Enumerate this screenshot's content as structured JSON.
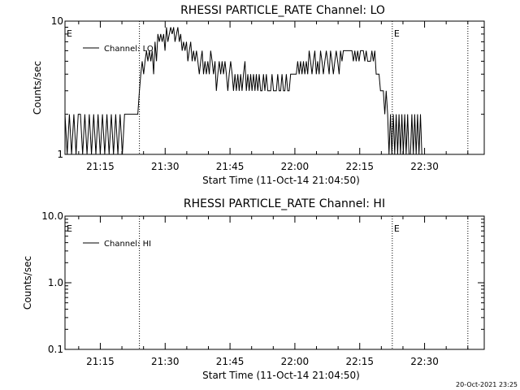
{
  "footer": {
    "timestamp": "20-Oct-2021 23:25"
  },
  "colors": {
    "background": "#ffffff",
    "foreground": "#000000"
  },
  "chart_data": [
    {
      "type": "line",
      "title": "RHESSI PARTICLE_RATE Channel: LO",
      "xlabel": "Start Time (11-Oct-14 21:04:50)",
      "ylabel": "Counts/sec",
      "yscale": "log",
      "xlim": [
        21.1139,
        22.73
      ],
      "ylim": [
        1,
        10
      ],
      "xticks": [
        21.25,
        21.5,
        21.75,
        22.0,
        22.25,
        22.5
      ],
      "xtick_labels": [
        "21:15",
        "21:30",
        "21:45",
        "22:00",
        "22:15",
        "22:30"
      ],
      "yticks": [
        1,
        10
      ],
      "ytick_labels": [
        "1",
        "10"
      ],
      "vlines": [
        21.4008,
        22.3755,
        22.6668
      ],
      "flag_labels": [
        {
          "x": 21.1139,
          "text": "E"
        },
        {
          "x": 22.3755,
          "text": "E"
        }
      ],
      "legend": {
        "position": "top-left",
        "label": "Channel: LO"
      },
      "series": [
        {
          "name": "Channel: LO",
          "x": [
            21.1139,
            21.1224,
            21.1309,
            21.1394,
            21.1479,
            21.1564,
            21.1649,
            21.1734,
            21.1819,
            21.1904,
            21.1989,
            21.2074,
            21.2159,
            21.2244,
            21.2329,
            21.2414,
            21.2499,
            21.2584,
            21.2669,
            21.2754,
            21.2839,
            21.2924,
            21.3009,
            21.3094,
            21.3179,
            21.3264,
            21.3349,
            21.3434,
            21.3519,
            21.3604,
            21.3689,
            21.3774,
            21.3859,
            21.3944,
            21.4008,
            21.406,
            21.4115,
            21.417,
            21.4225,
            21.428,
            21.4335,
            21.439,
            21.4445,
            21.45,
            21.4555,
            21.461,
            21.4665,
            21.472,
            21.4775,
            21.483,
            21.4885,
            21.494,
            21.4995,
            21.505,
            21.5105,
            21.516,
            21.5215,
            21.527,
            21.5325,
            21.538,
            21.5435,
            21.549,
            21.5545,
            21.56,
            21.5655,
            21.571,
            21.5765,
            21.582,
            21.5875,
            21.593,
            21.5985,
            21.604,
            21.6095,
            21.615,
            21.6205,
            21.626,
            21.6315,
            21.637,
            21.6425,
            21.648,
            21.6535,
            21.659,
            21.6645,
            21.67,
            21.6755,
            21.681,
            21.6865,
            21.692,
            21.6975,
            21.703,
            21.7085,
            21.714,
            21.7195,
            21.725,
            21.7305,
            21.736,
            21.7415,
            21.747,
            21.7525,
            21.758,
            21.7635,
            21.769,
            21.7745,
            21.78,
            21.7855,
            21.791,
            21.7965,
            21.802,
            21.8075,
            21.813,
            21.8185,
            21.824,
            21.8295,
            21.835,
            21.8405,
            21.846,
            21.8515,
            21.857,
            21.8625,
            21.868,
            21.8735,
            21.879,
            21.8845,
            21.89,
            21.8955,
            21.901,
            21.9065,
            21.912,
            21.9175,
            21.923,
            21.9285,
            21.934,
            21.9395,
            21.945,
            21.9505,
            21.956,
            21.9615,
            21.967,
            21.9725,
            21.978,
            21.9835,
            21.989,
            21.9945,
            22.0,
            22.0055,
            22.011,
            22.0165,
            22.022,
            22.0275,
            22.033,
            22.0385,
            22.044,
            22.0495,
            22.055,
            22.0605,
            22.066,
            22.0715,
            22.077,
            22.0825,
            22.088,
            22.0935,
            22.099,
            22.1045,
            22.11,
            22.1155,
            22.121,
            22.1265,
            22.132,
            22.1375,
            22.143,
            22.1485,
            22.154,
            22.1595,
            22.165,
            22.1705,
            22.176,
            22.1815,
            22.187,
            22.1925,
            22.198,
            22.2035,
            22.209,
            22.2145,
            22.22,
            22.2255,
            22.231,
            22.2365,
            22.242,
            22.2475,
            22.253,
            22.2585,
            22.264,
            22.2695,
            22.275,
            22.2805,
            22.286,
            22.2915,
            22.297,
            22.3025,
            22.308,
            22.3135,
            22.319,
            22.3245,
            22.33,
            22.3355,
            22.341,
            22.3465,
            22.352,
            22.3575,
            22.363,
            22.3685,
            22.374,
            22.3795,
            22.385,
            22.3905,
            22.396,
            22.4015,
            22.407,
            22.4125,
            22.418,
            22.4235,
            22.429,
            22.4345,
            22.44,
            22.4455,
            22.451,
            22.4565,
            22.462,
            22.4675,
            22.473,
            22.4785,
            22.484,
            22.4895,
            22.495,
            22.5005,
            22.506
          ],
          "y": [
            2,
            1,
            2,
            1,
            2,
            1,
            2,
            2,
            1,
            2,
            1,
            2,
            1,
            2,
            1,
            2,
            1,
            2,
            1,
            2,
            1,
            2,
            1,
            2,
            1,
            2,
            1,
            2,
            2,
            2,
            2,
            2,
            2,
            2,
            3,
            4,
            5,
            4,
            5,
            6,
            5,
            6,
            5,
            6,
            4,
            7,
            5,
            8,
            7,
            8,
            7,
            8,
            6,
            9,
            7,
            8,
            9,
            8,
            9,
            7,
            8,
            9,
            7,
            8,
            6,
            7,
            6,
            7,
            5,
            6,
            7,
            5,
            6,
            5,
            6,
            5,
            4,
            5,
            6,
            4,
            5,
            4,
            5,
            4,
            6,
            5,
            4,
            5,
            3,
            4,
            5,
            4,
            5,
            4,
            5,
            4,
            3,
            4,
            5,
            4,
            3,
            4,
            3,
            4,
            3,
            4,
            3,
            4,
            5,
            3,
            4,
            3,
            4,
            3,
            4,
            3,
            4,
            3,
            4,
            3,
            3,
            4,
            3,
            4,
            3,
            3,
            3,
            4,
            3,
            3,
            3,
            4,
            3,
            3,
            4,
            3,
            3,
            4,
            3,
            3,
            4,
            4,
            4,
            4,
            4,
            5,
            4,
            5,
            4,
            5,
            4,
            5,
            4,
            6,
            5,
            4,
            5,
            6,
            4,
            5,
            4,
            6,
            5,
            4,
            5,
            6,
            5,
            4,
            6,
            5,
            4,
            5,
            6,
            5,
            4,
            6,
            5,
            6,
            6,
            6,
            6,
            6,
            6,
            6,
            5,
            6,
            5,
            6,
            5,
            6,
            6,
            6,
            5,
            6,
            5,
            5,
            5,
            6,
            5,
            6,
            4,
            4,
            4,
            3,
            3,
            3,
            2,
            3,
            2,
            1,
            2,
            1,
            2,
            1,
            2,
            1,
            2,
            1,
            2,
            1,
            2,
            1,
            2,
            1,
            1,
            2,
            1,
            2,
            1,
            2,
            1,
            2,
            1,
            1,
            1,
            1
          ]
        }
      ]
    },
    {
      "type": "line",
      "title": "RHESSI PARTICLE_RATE Channel: HI",
      "xlabel": "Start Time (11-Oct-14 21:04:50)",
      "ylabel": "Counts/sec",
      "yscale": "log",
      "xlim": [
        21.1139,
        22.73
      ],
      "ylim": [
        0.1,
        10
      ],
      "xticks": [
        21.25,
        21.5,
        21.75,
        22.0,
        22.25,
        22.5
      ],
      "xtick_labels": [
        "21:15",
        "21:30",
        "21:45",
        "22:00",
        "22:15",
        "22:30"
      ],
      "yticks": [
        0.1,
        1,
        10
      ],
      "ytick_labels": [
        "0.1",
        "1.0",
        "10.0"
      ],
      "vlines": [
        21.4008,
        22.3755,
        22.6668
      ],
      "flag_labels": [
        {
          "x": 21.1139,
          "text": "E"
        },
        {
          "x": 22.3755,
          "text": "E"
        }
      ],
      "legend": {
        "position": "top-left",
        "label": "Channel: HI"
      },
      "series": [
        {
          "name": "Channel: HI",
          "x": [],
          "y": []
        }
      ]
    }
  ]
}
